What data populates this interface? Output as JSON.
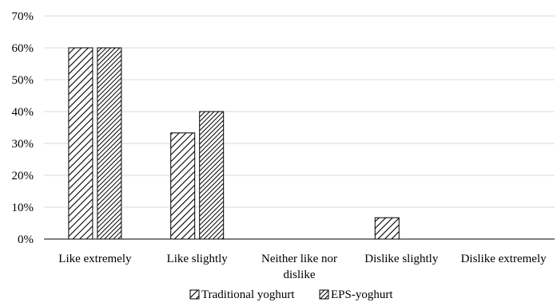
{
  "chart_data": {
    "type": "bar",
    "title": "",
    "xlabel": "",
    "ylabel": "",
    "ylim": [
      0,
      70
    ],
    "y_ticks": [
      "0%",
      "10%",
      "20%",
      "30%",
      "40%",
      "50%",
      "60%",
      "70%"
    ],
    "grid": true,
    "legend_position": "bottom",
    "categories": [
      [
        "Like extremely"
      ],
      [
        "Like slightly"
      ],
      [
        "Neither like nor",
        "dislike"
      ],
      [
        "Dislike slightly"
      ],
      [
        "Dislike extremely"
      ]
    ],
    "series": [
      {
        "name": "Traditional yoghurt",
        "values": [
          60,
          33.3,
          0,
          6.7,
          0
        ],
        "pattern": "diagonal-fine"
      },
      {
        "name": "EPS-yoghurt",
        "values": [
          60,
          40,
          0,
          0,
          0
        ],
        "pattern": "diagonal-dense"
      }
    ],
    "colors": {
      "grid": "#d9d9d9",
      "axis": "#000000",
      "bar_stroke": "#000000"
    }
  }
}
